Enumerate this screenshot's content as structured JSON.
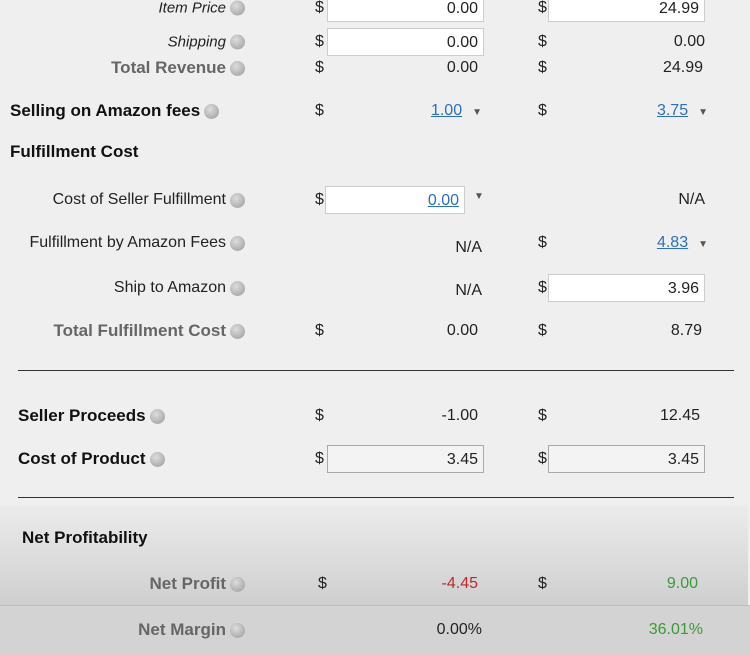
{
  "rows": {
    "item_price": {
      "label": "Item Price",
      "c1": "0.00",
      "c2": "24.99"
    },
    "shipping": {
      "label": "Shipping",
      "c1": "0.00",
      "c2": "0.00"
    },
    "total_revenue": {
      "label": "Total Revenue",
      "c1": "0.00",
      "c2": "24.99"
    },
    "selling_fees": {
      "label": "Selling on Amazon fees",
      "c1": "1.00",
      "c2": "3.75"
    },
    "fulfillment_header": "Fulfillment Cost",
    "seller_fulfillment": {
      "label": "Cost of Seller Fulfillment",
      "c1": "0.00",
      "c2": "N/A"
    },
    "fba_fees": {
      "label": "Fulfillment by Amazon Fees",
      "c1": "N/A",
      "c2": "4.83"
    },
    "ship_to_amazon": {
      "label": "Ship to Amazon",
      "c1": "N/A",
      "c2": "3.96"
    },
    "total_fulfillment": {
      "label": "Total Fulfillment Cost",
      "c1": "0.00",
      "c2": "8.79"
    },
    "seller_proceeds": {
      "label": "Seller Proceeds",
      "c1": "-1.00",
      "c2": "12.45"
    },
    "cost_of_product": {
      "label": "Cost of Product",
      "c1": "3.45",
      "c2": "3.45"
    },
    "net_header": "Net Profitability",
    "net_profit": {
      "label": "Net Profit",
      "c1": "-4.45",
      "c2": "9.00"
    },
    "net_margin": {
      "label": "Net Margin",
      "c1": "0.00%",
      "c2": "36.01%"
    }
  },
  "currency": "$",
  "colors": {
    "negative": "#c0282d",
    "positive": "#3a9a3a",
    "link": "#2a6fc1"
  }
}
